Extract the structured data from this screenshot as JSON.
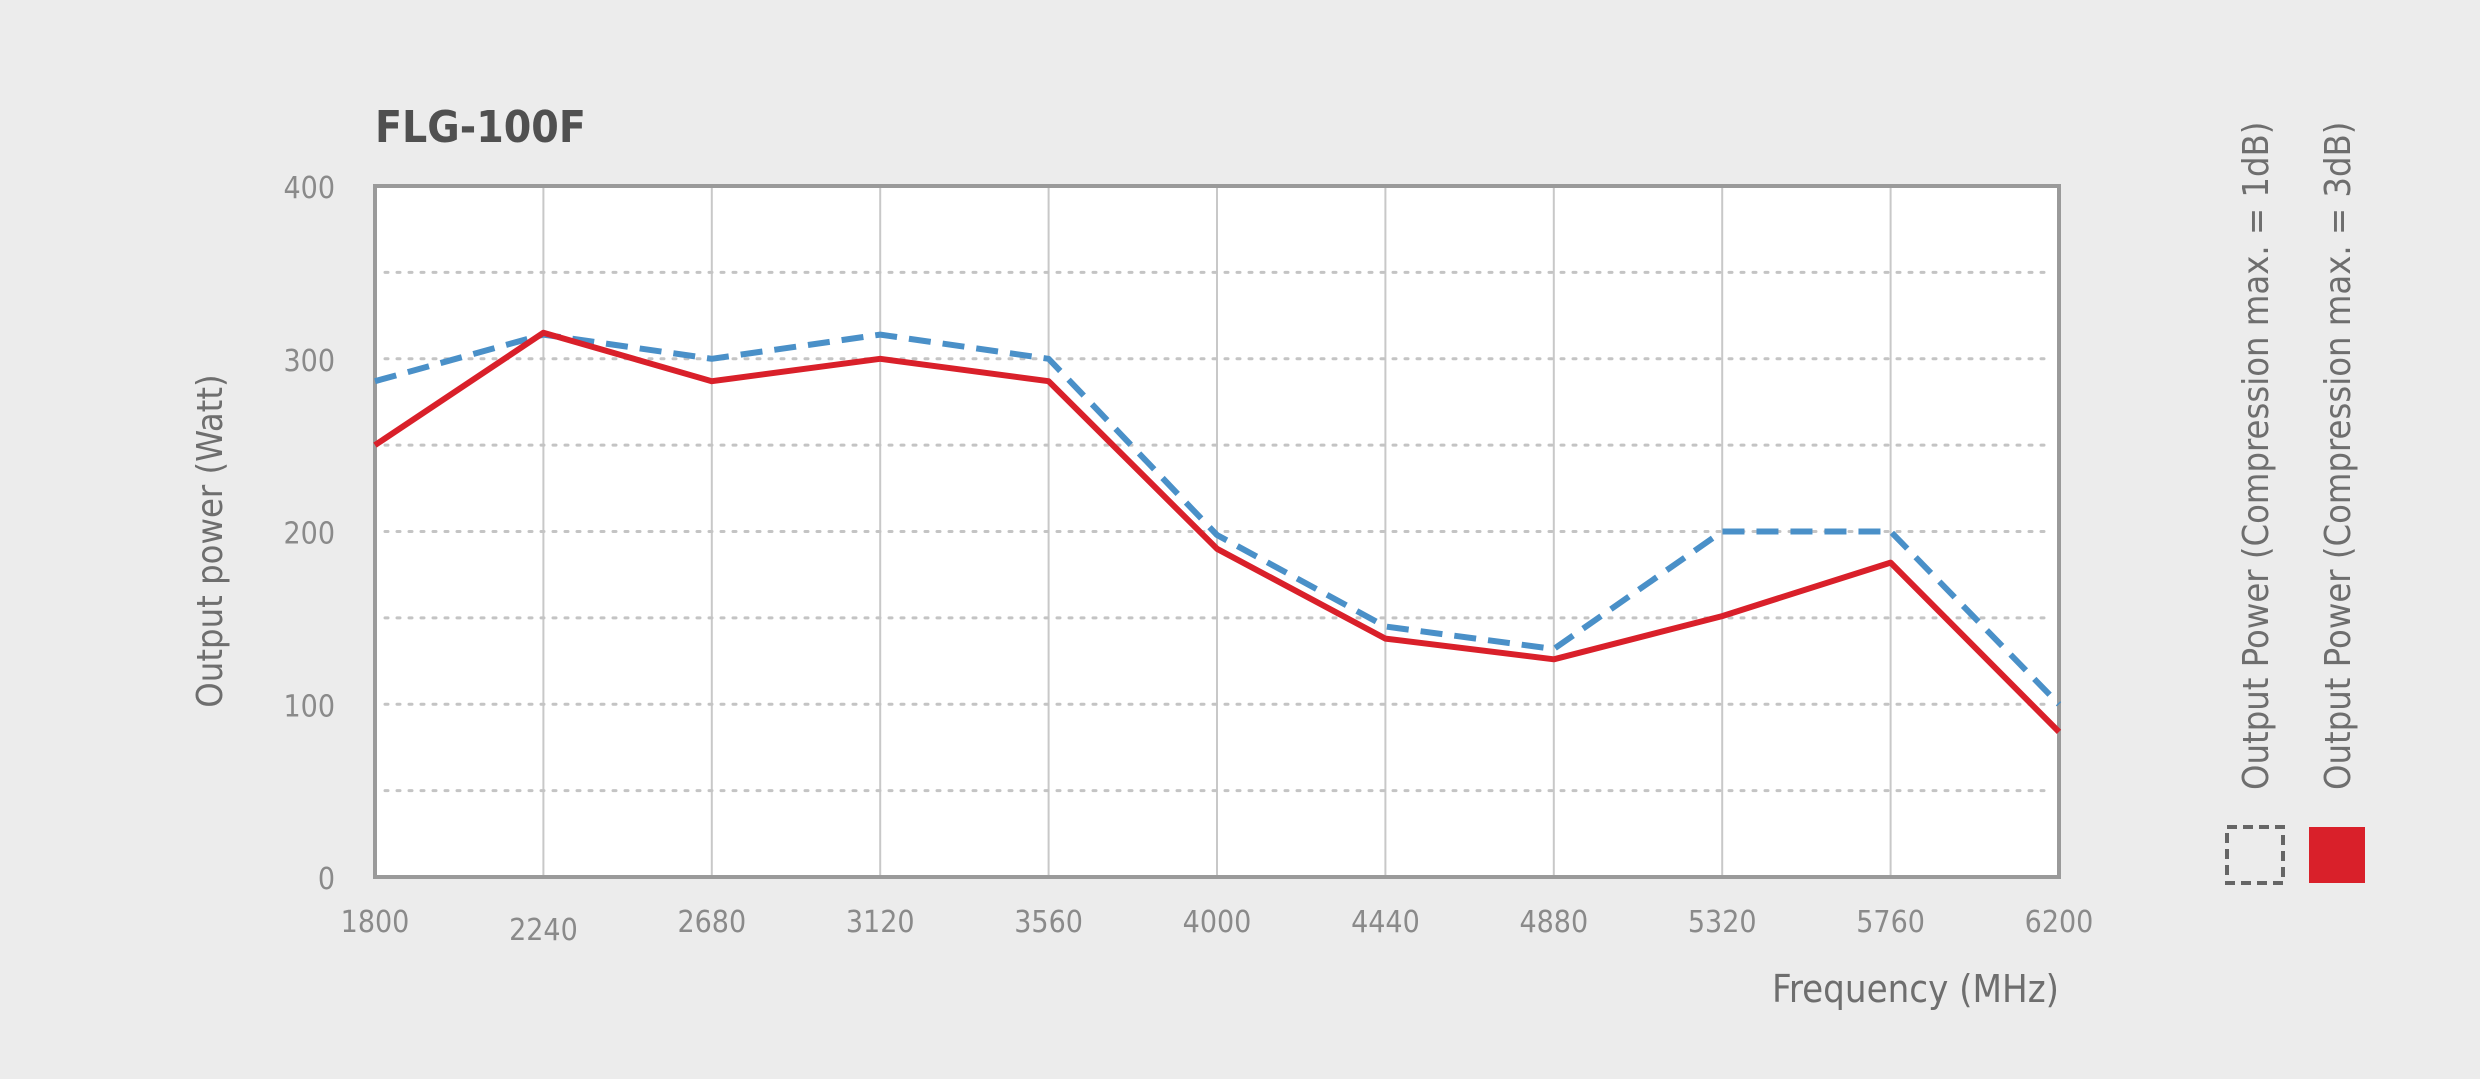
{
  "chart_data": {
    "type": "line",
    "title": "FLG-100F",
    "xlabel": "Frequency (MHz)",
    "ylabel": "Output power (Watt)",
    "xlim": [
      1800,
      6200
    ],
    "ylim": [
      0,
      400
    ],
    "x": [
      1800,
      2240,
      2680,
      3120,
      3560,
      4000,
      4440,
      4880,
      5320,
      5760,
      6200
    ],
    "x_tick_labels": [
      "1800",
      "2240",
      "2680",
      "3120",
      "3560",
      "4000",
      "4440",
      "4880",
      "5320",
      "5760",
      "6200"
    ],
    "y_ticks": [
      0,
      100,
      200,
      300,
      400
    ],
    "y_tick_labels": [
      "0",
      "100",
      "200",
      "300",
      "400"
    ],
    "grid": {
      "vertical": true,
      "horizontal_dotted": true,
      "horizontal_values": [
        50,
        100,
        150,
        200,
        250,
        300,
        350
      ]
    },
    "legend_position": "right, vertical",
    "series": [
      {
        "name": "Output Power (Compression max. = 1dB)",
        "style": "dashed",
        "color": "#4a90c8",
        "legend_swatch": "dashed-outline",
        "values": [
          287,
          314,
          300,
          314,
          300,
          198,
          145,
          132,
          200,
          200,
          100
        ]
      },
      {
        "name": "Output Power (Compression max. = 3dB)",
        "style": "solid",
        "color": "#d9202a",
        "legend_swatch": "filled",
        "values": [
          250,
          315,
          287,
          300,
          287,
          190,
          138,
          126,
          151,
          182,
          84
        ]
      }
    ]
  }
}
